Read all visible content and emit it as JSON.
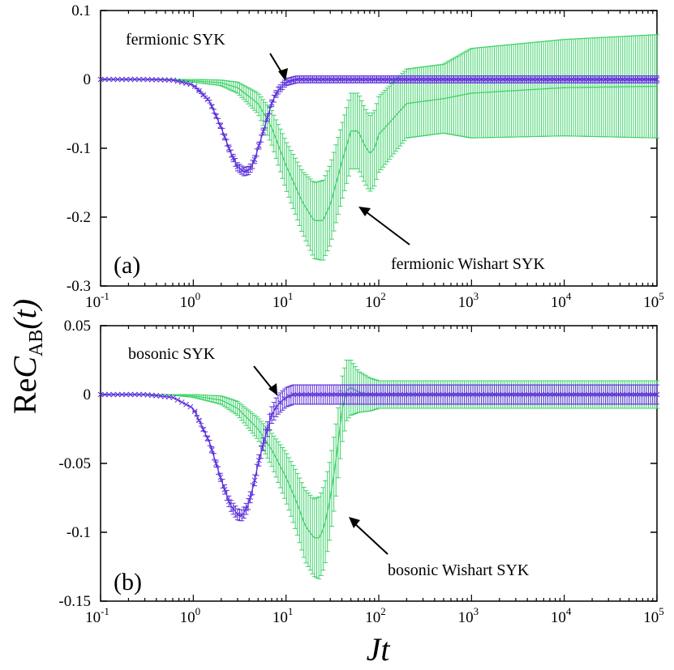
{
  "figure": {
    "ylabel_prefix": "Re",
    "ylabel_var": "C",
    "ylabel_sub": "AB",
    "ylabel_arg": "(t)",
    "xlabel": "Jt"
  },
  "colors": {
    "syk": "#5b2fd9",
    "wishart": "#3fd26a",
    "axis": "#000000"
  },
  "chart_data": [
    {
      "type": "line",
      "panel": "(a)",
      "xscale": "log",
      "xlim": [
        0.1,
        100000
      ],
      "ylim": [
        -0.3,
        0.1
      ],
      "yticks": [
        "0.1",
        "0",
        "-0.1",
        "-0.2",
        "-0.3"
      ],
      "ytick_values": [
        0.1,
        0,
        -0.1,
        -0.2,
        -0.3
      ],
      "xticks": [
        {
          "base": "10",
          "exp": "-1"
        },
        {
          "base": "10",
          "exp": "0"
        },
        {
          "base": "10",
          "exp": "1"
        },
        {
          "base": "10",
          "exp": "2"
        },
        {
          "base": "10",
          "exp": "3"
        },
        {
          "base": "10",
          "exp": "4"
        },
        {
          "base": "10",
          "exp": "5"
        }
      ],
      "xtick_values": [
        0.1,
        1,
        10,
        100,
        1000,
        10000,
        100000
      ],
      "annotations": [
        "fermionic SYK",
        "fermionic Wishart SYK"
      ],
      "series": [
        {
          "name": "fermionic SYK",
          "color": "#5b2fd9",
          "x": [
            0.1,
            0.3,
            0.6,
            1,
            1.5,
            2,
            2.5,
            3,
            3.5,
            4,
            4.5,
            5,
            6,
            7,
            8,
            10,
            13,
            20,
            50,
            100,
            1000,
            10000,
            100000
          ],
          "y": [
            0,
            0,
            -0.001,
            -0.008,
            -0.032,
            -0.07,
            -0.105,
            -0.127,
            -0.134,
            -0.132,
            -0.12,
            -0.1,
            -0.065,
            -0.035,
            -0.018,
            -0.004,
            0,
            0,
            0,
            0,
            0,
            0,
            0
          ],
          "err": [
            0,
            0,
            0,
            0,
            0.002,
            0.004,
            0.005,
            0.006,
            0.006,
            0.006,
            0.006,
            0.005,
            0.005,
            0.005,
            0.005,
            0.005,
            0.005,
            0.005,
            0.005,
            0.005,
            0.005,
            0.005,
            0.005
          ]
        },
        {
          "name": "fermionic Wishart SYK",
          "color": "#3fd26a",
          "x": [
            0.1,
            0.5,
            1,
            2,
            3,
            5,
            7,
            10,
            15,
            20,
            25,
            30,
            40,
            50,
            60,
            70,
            80,
            90,
            100,
            200,
            500,
            1000,
            10000,
            100000
          ],
          "y": [
            0,
            0,
            -0.002,
            -0.005,
            -0.012,
            -0.035,
            -0.07,
            -0.125,
            -0.178,
            -0.205,
            -0.205,
            -0.182,
            -0.12,
            -0.075,
            -0.075,
            -0.095,
            -0.108,
            -0.1,
            -0.08,
            -0.035,
            -0.028,
            -0.02,
            -0.012,
            -0.01
          ],
          "err": [
            0,
            0,
            0.002,
            0.004,
            0.008,
            0.015,
            0.025,
            0.035,
            0.045,
            0.055,
            0.058,
            0.058,
            0.055,
            0.055,
            0.055,
            0.055,
            0.055,
            0.055,
            0.055,
            0.05,
            0.05,
            0.065,
            0.07,
            0.075
          ]
        }
      ]
    },
    {
      "type": "line",
      "panel": "(b)",
      "xscale": "log",
      "xlim": [
        0.1,
        100000
      ],
      "ylim": [
        -0.15,
        0.05
      ],
      "yticks": [
        "0.05",
        "0",
        "-0.05",
        "-0.1",
        "-0.15"
      ],
      "ytick_values": [
        0.05,
        0,
        -0.05,
        -0.1,
        -0.15
      ],
      "xticks": [
        {
          "base": "10",
          "exp": "-1"
        },
        {
          "base": "10",
          "exp": "0"
        },
        {
          "base": "10",
          "exp": "1"
        },
        {
          "base": "10",
          "exp": "2"
        },
        {
          "base": "10",
          "exp": "3"
        },
        {
          "base": "10",
          "exp": "4"
        },
        {
          "base": "10",
          "exp": "5"
        }
      ],
      "xtick_values": [
        0.1,
        1,
        10,
        100,
        1000,
        10000,
        100000
      ],
      "annotations": [
        "bosonic SYK",
        "bosonic Wishart SYK"
      ],
      "series": [
        {
          "name": "bosonic SYK",
          "color": "#5b2fd9",
          "x": [
            0.1,
            0.3,
            0.6,
            1,
            1.5,
            2,
            2.5,
            3,
            3.3,
            3.6,
            4,
            4.5,
            5,
            6,
            7,
            8,
            10,
            12,
            20,
            100,
            1000,
            10000,
            100000
          ],
          "y": [
            0,
            0,
            -0.002,
            -0.01,
            -0.035,
            -0.062,
            -0.08,
            -0.087,
            -0.088,
            -0.085,
            -0.078,
            -0.065,
            -0.05,
            -0.03,
            -0.015,
            -0.008,
            -0.002,
            0,
            0,
            0,
            0,
            0,
            0
          ],
          "err": [
            0,
            0,
            0,
            0,
            0.002,
            0.003,
            0.004,
            0.004,
            0.004,
            0.004,
            0.004,
            0.004,
            0.004,
            0.005,
            0.006,
            0.007,
            0.007,
            0.007,
            0.007,
            0.007,
            0.007,
            0.007,
            0.007
          ]
        },
        {
          "name": "bosonic Wishart SYK",
          "color": "#3fd26a",
          "x": [
            0.1,
            0.5,
            1,
            2,
            3,
            5,
            7,
            10,
            13,
            16,
            20,
            23,
            26,
            30,
            35,
            40,
            45,
            50,
            60,
            80,
            100,
            1000,
            10000,
            100000
          ],
          "y": [
            0,
            0,
            -0.001,
            -0.004,
            -0.01,
            -0.025,
            -0.04,
            -0.06,
            -0.078,
            -0.095,
            -0.104,
            -0.104,
            -0.095,
            -0.075,
            -0.045,
            -0.012,
            0.003,
            0.005,
            0.002,
            0,
            0,
            0,
            0,
            0
          ],
          "err": [
            0,
            0,
            0.001,
            0.003,
            0.005,
            0.008,
            0.012,
            0.018,
            0.022,
            0.026,
            0.028,
            0.03,
            0.03,
            0.028,
            0.026,
            0.024,
            0.022,
            0.02,
            0.015,
            0.012,
            0.01,
            0.01,
            0.01,
            0.01
          ]
        }
      ]
    }
  ]
}
